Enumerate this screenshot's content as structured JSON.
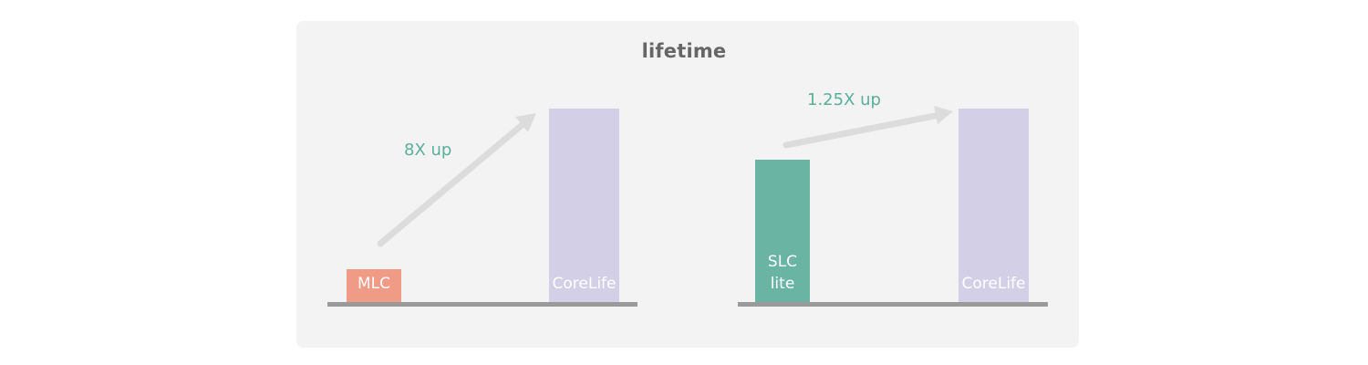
{
  "title": "lifetime",
  "colors": {
    "panel_bg": "#f3f3f3",
    "mlc": "#f09b86",
    "slc_lite": "#69b4a3",
    "corelife": "#d3cfe6",
    "annotation": "#5aaf9a",
    "arrow": "#dcdcdc",
    "baseline": "#9a9a9a"
  },
  "chart_data": [
    {
      "type": "bar",
      "title": "lifetime",
      "categories": [
        "MLC",
        "CoreLife"
      ],
      "values": [
        1,
        8
      ],
      "unit": "relative",
      "annotation": "8X up"
    },
    {
      "type": "bar",
      "categories": [
        "SLC\nlite",
        "CoreLife"
      ],
      "values": [
        1,
        1.25
      ],
      "unit": "relative",
      "annotation": "1.25X up"
    }
  ]
}
